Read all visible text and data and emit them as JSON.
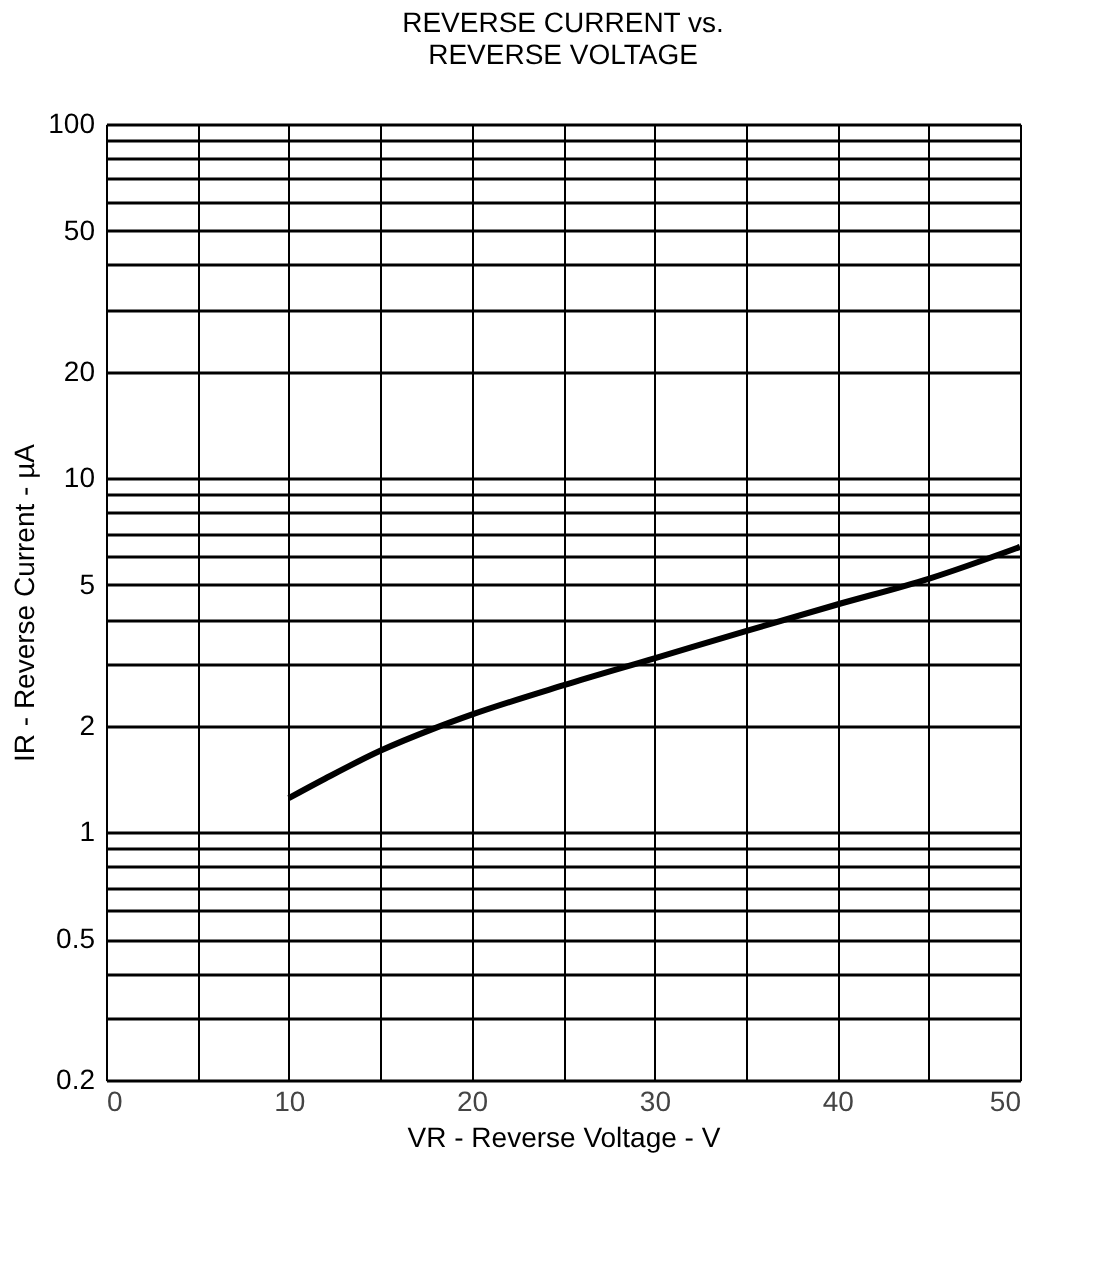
{
  "chart_data": {
    "type": "line",
    "title": "REVERSE CURRENT vs.\nREVERSE VOLTAGE",
    "xlabel": "VR - Reverse Voltage - V",
    "ylabel": "IR - Reverse Current - µA",
    "x": [
      10,
      12,
      15,
      18,
      20,
      25,
      30,
      35,
      40,
      45,
      50
    ],
    "series": [
      {
        "color": "#000000",
        "values": [
          1.25,
          1.42,
          1.7,
          1.97,
          2.15,
          2.6,
          3.1,
          3.7,
          4.4,
          5.2,
          6.4
        ]
      }
    ],
    "log": "y",
    "xlim": [
      0,
      50
    ],
    "ylim": [
      0.2,
      100
    ],
    "xticks": [
      0,
      {
        "value": 5,
        "label": null
      },
      10,
      {
        "value": 15,
        "label": null
      },
      20,
      {
        "value": 25,
        "label": null
      },
      30,
      {
        "value": 35,
        "label": null
      },
      40,
      {
        "value": 45,
        "label": null
      },
      50
    ],
    "yticks": [
      0.2,
      {
        "value": 0.3,
        "label": null
      },
      {
        "value": 0.4,
        "label": null
      },
      0.5,
      {
        "value": 0.6,
        "label": null
      },
      {
        "value": 0.7,
        "label": null
      },
      {
        "value": 0.8,
        "label": null
      },
      {
        "value": 0.9,
        "label": null
      },
      1,
      2,
      {
        "value": 3,
        "label": null
      },
      {
        "value": 4,
        "label": null
      },
      5,
      {
        "value": 6,
        "label": null
      },
      {
        "value": 7,
        "label": null
      },
      {
        "value": 8,
        "label": null
      },
      {
        "value": 9,
        "label": null
      },
      10,
      20,
      {
        "value": 30,
        "label": null
      },
      {
        "value": 40,
        "label": null
      },
      50,
      {
        "value": 60,
        "label": null
      },
      {
        "value": 70,
        "label": null
      },
      {
        "value": 80,
        "label": null
      },
      {
        "value": 90,
        "label": null
      },
      100
    ],
    "grid": true,
    "line_style": "solid",
    "marker": "none"
  }
}
